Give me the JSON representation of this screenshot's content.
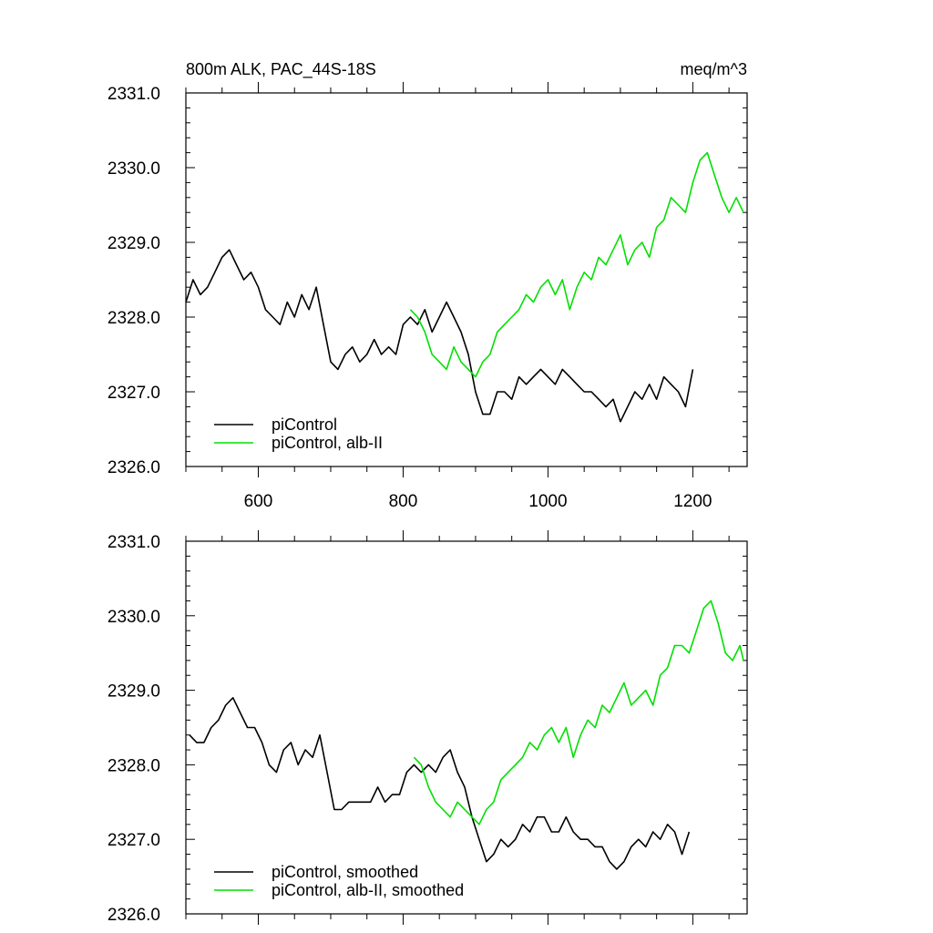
{
  "chart_data": [
    {
      "type": "line",
      "title": "800m ALK, PAC_44S-18S",
      "units": "meq/m^3",
      "xlim": [
        500,
        1275
      ],
      "ylim": [
        2326.0,
        2331.0
      ],
      "xticks": [
        600,
        800,
        1000,
        1200
      ],
      "xtick_labels": [
        "600",
        "800",
        "1000",
        "1200"
      ],
      "yticks": [
        2326.0,
        2327.0,
        2328.0,
        2329.0,
        2330.0,
        2331.0
      ],
      "ytick_labels": [
        "2326.0",
        "2327.0",
        "2328.0",
        "2329.0",
        "2330.0",
        "2331.0"
      ],
      "legend_position": "bottom-left",
      "series": [
        {
          "name": "piControl",
          "color": "#000000",
          "x": [
            500,
            510,
            520,
            530,
            540,
            550,
            560,
            570,
            580,
            590,
            600,
            610,
            620,
            630,
            640,
            650,
            660,
            670,
            680,
            690,
            700,
            710,
            720,
            730,
            740,
            750,
            760,
            770,
            780,
            790,
            800,
            810,
            820,
            830,
            840,
            850,
            860,
            870,
            880,
            890,
            900,
            910,
            920,
            930,
            940,
            950,
            960,
            970,
            980,
            990,
            1000,
            1010,
            1020,
            1030,
            1040,
            1050,
            1060,
            1070,
            1080,
            1090,
            1100,
            1110,
            1120,
            1130,
            1140,
            1150,
            1160,
            1170,
            1180,
            1190,
            1200
          ],
          "y": [
            2328.2,
            2328.5,
            2328.3,
            2328.4,
            2328.6,
            2328.8,
            2328.9,
            2328.7,
            2328.5,
            2328.6,
            2328.4,
            2328.1,
            2328.0,
            2327.9,
            2328.2,
            2328.0,
            2328.3,
            2328.1,
            2328.4,
            2327.9,
            2327.4,
            2327.3,
            2327.5,
            2327.6,
            2327.4,
            2327.5,
            2327.7,
            2327.5,
            2327.6,
            2327.5,
            2327.9,
            2328.0,
            2327.9,
            2328.1,
            2327.8,
            2328.0,
            2328.2,
            2328.0,
            2327.8,
            2327.5,
            2327.0,
            2326.7,
            2326.7,
            2327.0,
            2327.0,
            2326.9,
            2327.2,
            2327.1,
            2327.2,
            2327.3,
            2327.2,
            2327.1,
            2327.3,
            2327.2,
            2327.1,
            2327.0,
            2327.0,
            2326.9,
            2326.8,
            2326.9,
            2326.6,
            2326.8,
            2327.0,
            2326.9,
            2327.1,
            2326.9,
            2327.2,
            2327.1,
            2327.0,
            2326.8,
            2327.3
          ]
        },
        {
          "name": "piControl, alb-II",
          "color": "#00e000",
          "x": [
            810,
            820,
            830,
            840,
            850,
            860,
            870,
            880,
            890,
            900,
            910,
            920,
            930,
            940,
            950,
            960,
            970,
            980,
            990,
            1000,
            1010,
            1020,
            1030,
            1040,
            1050,
            1060,
            1070,
            1080,
            1090,
            1100,
            1110,
            1120,
            1130,
            1140,
            1150,
            1160,
            1170,
            1180,
            1190,
            1200,
            1210,
            1220,
            1230,
            1240,
            1250,
            1260,
            1270
          ],
          "y": [
            2328.1,
            2328.0,
            2327.8,
            2327.5,
            2327.4,
            2327.3,
            2327.6,
            2327.4,
            2327.3,
            2327.2,
            2327.4,
            2327.5,
            2327.8,
            2327.9,
            2328.0,
            2328.1,
            2328.3,
            2328.2,
            2328.4,
            2328.5,
            2328.3,
            2328.5,
            2328.1,
            2328.4,
            2328.6,
            2328.5,
            2328.8,
            2328.7,
            2328.9,
            2329.1,
            2328.7,
            2328.9,
            2329.0,
            2328.8,
            2329.2,
            2329.3,
            2329.6,
            2329.5,
            2329.4,
            2329.8,
            2330.1,
            2330.2,
            2329.9,
            2329.6,
            2329.4,
            2329.6,
            2329.4
          ]
        }
      ]
    },
    {
      "type": "line",
      "xlim": [
        500,
        1275
      ],
      "ylim": [
        2326.0,
        2331.0
      ],
      "yticks": [
        2326.0,
        2327.0,
        2328.0,
        2329.0,
        2330.0,
        2331.0
      ],
      "ytick_labels": [
        "2326.0",
        "2327.0",
        "2328.0",
        "2329.0",
        "2330.0",
        "2331.0"
      ],
      "legend_position": "bottom-left",
      "series": [
        {
          "name": "piControl, smoothed",
          "color": "#000000",
          "x": [
            505,
            515,
            525,
            535,
            545,
            555,
            565,
            575,
            585,
            595,
            605,
            615,
            625,
            635,
            645,
            655,
            665,
            675,
            685,
            695,
            705,
            715,
            725,
            735,
            745,
            755,
            765,
            775,
            785,
            795,
            805,
            815,
            825,
            835,
            845,
            855,
            865,
            875,
            885,
            895,
            905,
            915,
            925,
            935,
            945,
            955,
            965,
            975,
            985,
            995,
            1005,
            1015,
            1025,
            1035,
            1045,
            1055,
            1065,
            1075,
            1085,
            1095,
            1105,
            1115,
            1125,
            1135,
            1145,
            1155,
            1165,
            1175,
            1185,
            1195
          ],
          "y": [
            2328.4,
            2328.3,
            2328.3,
            2328.5,
            2328.6,
            2328.8,
            2328.9,
            2328.7,
            2328.5,
            2328.5,
            2328.3,
            2328.0,
            2327.9,
            2328.2,
            2328.3,
            2328.0,
            2328.2,
            2328.1,
            2328.4,
            2327.9,
            2327.4,
            2327.4,
            2327.5,
            2327.5,
            2327.5,
            2327.5,
            2327.7,
            2327.5,
            2327.6,
            2327.6,
            2327.9,
            2328.0,
            2327.9,
            2328.0,
            2327.9,
            2328.1,
            2328.2,
            2327.9,
            2327.7,
            2327.3,
            2327.0,
            2326.7,
            2326.8,
            2327.0,
            2326.9,
            2327.0,
            2327.2,
            2327.1,
            2327.3,
            2327.3,
            2327.1,
            2327.1,
            2327.3,
            2327.1,
            2327.0,
            2327.0,
            2326.9,
            2326.9,
            2326.7,
            2326.6,
            2326.7,
            2326.9,
            2327.0,
            2326.9,
            2327.1,
            2327.0,
            2327.2,
            2327.1,
            2326.8,
            2327.1
          ]
        },
        {
          "name": "piControl, alb-II, smoothed",
          "color": "#00e000",
          "x": [
            815,
            825,
            835,
            845,
            855,
            865,
            875,
            885,
            895,
            905,
            915,
            925,
            935,
            945,
            955,
            965,
            975,
            985,
            995,
            1005,
            1015,
            1025,
            1035,
            1045,
            1055,
            1065,
            1075,
            1085,
            1095,
            1105,
            1115,
            1125,
            1135,
            1145,
            1155,
            1165,
            1175,
            1185,
            1195,
            1205,
            1215,
            1225,
            1235,
            1245,
            1255,
            1265,
            1270
          ],
          "y": [
            2328.1,
            2328.0,
            2327.7,
            2327.5,
            2327.4,
            2327.3,
            2327.5,
            2327.4,
            2327.3,
            2327.2,
            2327.4,
            2327.5,
            2327.8,
            2327.9,
            2328.0,
            2328.1,
            2328.3,
            2328.2,
            2328.4,
            2328.5,
            2328.3,
            2328.5,
            2328.1,
            2328.4,
            2328.6,
            2328.5,
            2328.8,
            2328.7,
            2328.9,
            2329.1,
            2328.8,
            2328.9,
            2329.0,
            2328.8,
            2329.2,
            2329.3,
            2329.6,
            2329.6,
            2329.5,
            2329.8,
            2330.1,
            2330.2,
            2329.9,
            2329.5,
            2329.4,
            2329.6,
            2329.4
          ]
        }
      ]
    }
  ]
}
